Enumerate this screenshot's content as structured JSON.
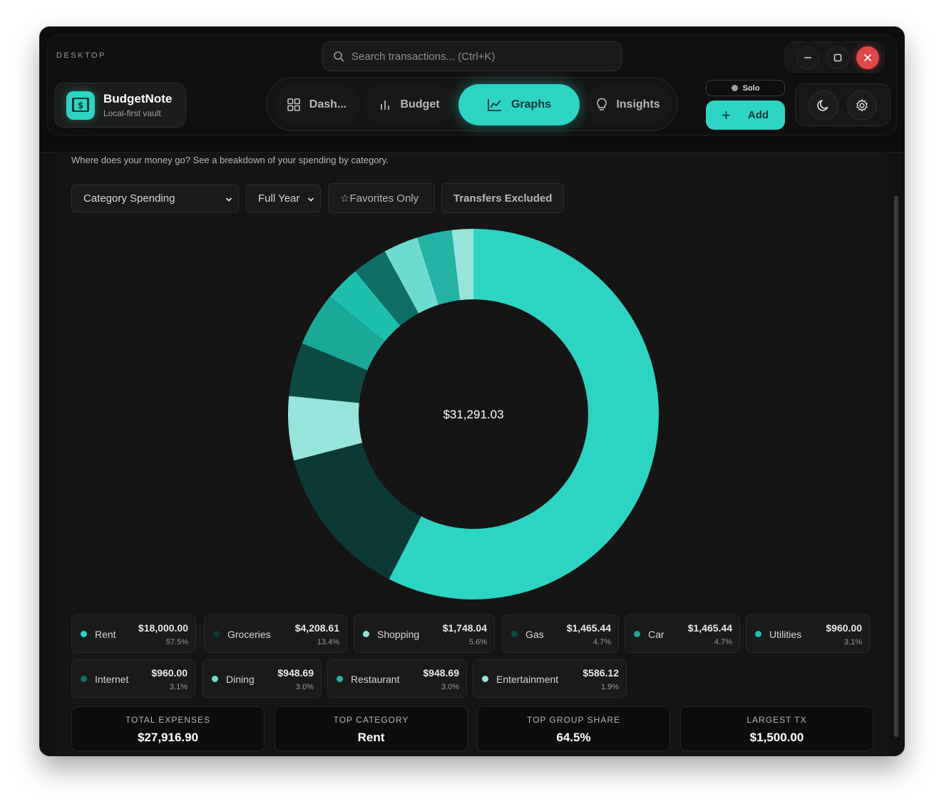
{
  "platform_label": "DESKTOP",
  "search": {
    "placeholder": "Search transactions... (Ctrl+K)"
  },
  "brand": {
    "name": "BudgetNote",
    "subtitle": "Local-first vault"
  },
  "tabs": [
    {
      "label": "Dash...",
      "icon": "grid-icon",
      "active": false
    },
    {
      "label": "Budget",
      "icon": "bar-chart-icon",
      "active": false
    },
    {
      "label": "Graphs",
      "icon": "line-chart-icon",
      "active": true
    },
    {
      "label": "Insights",
      "icon": "lightbulb-icon",
      "active": false
    }
  ],
  "mode_badge": "Solo",
  "add_button": "Add",
  "accent_color": "#2dd4c4",
  "page": {
    "subtitle": "Where does your money go? See a breakdown of your spending by category.",
    "chart_type_select": "Category Spending",
    "period_select": "Full Year",
    "favorites_toggle": "☆Favorites Only",
    "transfers_toggle": "Transfers Excluded"
  },
  "chart_data": {
    "type": "pie",
    "center_label": "$31,291.03",
    "slices": [
      {
        "name": "Rent",
        "value": 18000.0,
        "amount": "$18,000.00",
        "percent": "57.5%",
        "color": "#2dd4c4"
      },
      {
        "name": "Groceries",
        "value": 4208.61,
        "amount": "$4,208.61",
        "percent": "13.4%",
        "color": "#0b3a36"
      },
      {
        "name": "Shopping",
        "value": 1748.04,
        "amount": "$1,748.04",
        "percent": "5.6%",
        "color": "#96e4db"
      },
      {
        "name": "Gas",
        "value": 1465.44,
        "amount": "$1,465.44",
        "percent": "4.7%",
        "color": "#0e4a44"
      },
      {
        "name": "Car",
        "value": 1465.44,
        "amount": "$1,465.44",
        "percent": "4.7%",
        "color": "#1aa898"
      },
      {
        "name": "Utilities",
        "value": 960.0,
        "amount": "$960.00",
        "percent": "3.1%",
        "color": "#1fbfae"
      },
      {
        "name": "Internet",
        "value": 960.0,
        "amount": "$960.00",
        "percent": "3.1%",
        "color": "#0f6f66"
      },
      {
        "name": "Dining",
        "value": 948.69,
        "amount": "$948.69",
        "percent": "3.0%",
        "color": "#6ddbd0"
      },
      {
        "name": "Restaurant",
        "value": 948.69,
        "amount": "$948.69",
        "percent": "3.0%",
        "color": "#22b3a4"
      },
      {
        "name": "Entertainment",
        "value": 586.12,
        "amount": "$586.12",
        "percent": "1.9%",
        "color": "#96e4db"
      }
    ]
  },
  "stats": [
    {
      "label": "TOTAL EXPENSES",
      "value": "$27,916.90"
    },
    {
      "label": "TOP CATEGORY",
      "value": "Rent"
    },
    {
      "label": "TOP GROUP SHARE",
      "value": "64.5%"
    },
    {
      "label": "LARGEST TX",
      "value": "$1,500.00"
    }
  ]
}
